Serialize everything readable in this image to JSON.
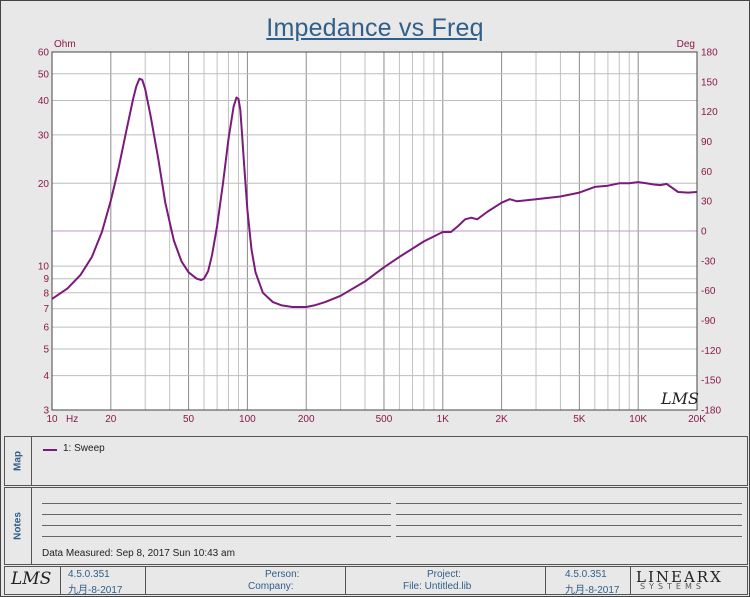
{
  "title": "Impedance vs Freq",
  "chart_data": {
    "type": "line",
    "title": "Impedance vs Freq",
    "x_unit": "Hz",
    "y_unit_left": "Ohm",
    "y_unit_right": "Deg",
    "x_scale": "log",
    "y_scale": "log",
    "xlim": [
      10,
      20000
    ],
    "ylim": [
      3,
      60
    ],
    "y2lim": [
      -180,
      180
    ],
    "grid": true,
    "x_tick_labels": [
      "10",
      "20",
      "50",
      "100",
      "200",
      "500",
      "1K",
      "2K",
      "5K",
      "10K",
      "20K"
    ],
    "x_tick_values": [
      10,
      20,
      50,
      100,
      200,
      500,
      1000,
      2000,
      5000,
      10000,
      20000
    ],
    "y_tick_labels": [
      "3",
      "4",
      "5",
      "6",
      "7",
      "8",
      "9",
      "10",
      "20",
      "30",
      "40",
      "50",
      "60"
    ],
    "y_tick_values": [
      3,
      4,
      5,
      6,
      7,
      8,
      9,
      10,
      20,
      30,
      40,
      50,
      60
    ],
    "y2_tick_labels": [
      "180",
      "150",
      "120",
      "90",
      "60",
      "30",
      "0",
      "-30",
      "-60",
      "-90",
      "-120",
      "-150",
      "-180"
    ],
    "series": [
      {
        "name": "1: Sweep",
        "color": "#7a1a7a",
        "x": [
          10,
          12,
          14,
          16,
          18,
          20,
          22,
          24,
          26,
          27,
          28,
          29,
          30,
          32,
          35,
          38,
          42,
          46,
          50,
          55,
          58,
          60,
          63,
          66,
          70,
          75,
          80,
          85,
          88,
          90,
          92,
          94,
          96,
          100,
          105,
          110,
          120,
          135,
          150,
          170,
          190,
          200,
          220,
          250,
          300,
          400,
          500,
          600,
          800,
          1000,
          1100,
          1200,
          1300,
          1400,
          1500,
          1700,
          2000,
          2200,
          2400,
          3000,
          4000,
          5000,
          6000,
          7000,
          8000,
          9000,
          10000,
          11000,
          12000,
          13000,
          14000,
          16000,
          18000,
          20000
        ],
        "y": [
          7.6,
          8.3,
          9.3,
          10.8,
          13.3,
          17.3,
          23.0,
          31.0,
          40.5,
          45.0,
          48.0,
          47.5,
          44.0,
          35.0,
          24.5,
          17.0,
          12.4,
          10.4,
          9.5,
          9.0,
          8.9,
          9.0,
          9.6,
          11.0,
          14.0,
          20.0,
          29.0,
          38.0,
          41.0,
          40.5,
          37.0,
          30.0,
          24.0,
          16.0,
          11.5,
          9.5,
          8.0,
          7.4,
          7.2,
          7.1,
          7.1,
          7.1,
          7.2,
          7.4,
          7.8,
          8.8,
          9.9,
          10.8,
          12.3,
          13.3,
          13.3,
          14.0,
          14.8,
          15.0,
          14.8,
          15.8,
          17.0,
          17.5,
          17.2,
          17.5,
          17.9,
          18.5,
          19.4,
          19.6,
          20.0,
          20.0,
          20.2,
          20.0,
          19.8,
          19.7,
          19.9,
          18.6,
          18.5,
          18.6
        ]
      }
    ]
  },
  "legend": {
    "tab_label": "Map",
    "items": [
      "1: Sweep"
    ]
  },
  "notes": {
    "tab_label": "Notes",
    "data_measured": "Data Measured: Sep 8, 2017 Sun 10:43 am"
  },
  "watermark": "LMS",
  "footer": {
    "logo": "LMS",
    "version_left": "4.5.0.351",
    "date_left": "九月-8-2017",
    "person_label": "Person:",
    "company_label": "Company:",
    "project_label": "Project:",
    "file_label": "File: Untitled.lib",
    "version_right": "4.5.0.351",
    "date_right": "九月-8-2017",
    "brand": "LINEARX",
    "brand_sub": "SYSTEMS"
  }
}
